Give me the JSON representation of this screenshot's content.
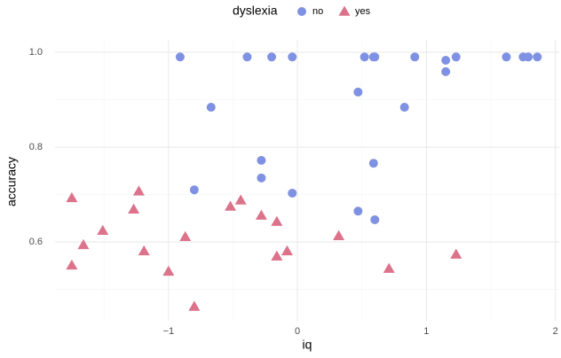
{
  "chart_data": {
    "type": "scatter",
    "legend_title": "dyslexia",
    "legend_position": "top",
    "x_label": "iq",
    "y_label": "accuracy",
    "xlim": [
      -1.88,
      2.03
    ],
    "ylim": [
      0.434,
      1.026
    ],
    "xticks": [
      {
        "value": -1,
        "label": "−1"
      },
      0,
      1,
      2
    ],
    "yticks": [
      0.6,
      0.8,
      {
        "value": 1,
        "label": "1.0"
      }
    ],
    "xminor": [
      -1.5,
      -0.5,
      0.5,
      1.5
    ],
    "yminor": [
      0.5,
      0.7,
      0.9
    ],
    "grid": true,
    "series": [
      {
        "name": "no",
        "color": "#7f91e2",
        "shape": "circle",
        "x": [
          -0.91,
          -0.39,
          -0.2,
          -0.04,
          0.52,
          0.59,
          0.6,
          0.91,
          1.15,
          1.23,
          1.62,
          1.75,
          1.79,
          1.86,
          -0.67,
          0.47,
          1.15,
          0.83,
          -0.28,
          0.59,
          -0.28,
          -0.8,
          -0.04,
          0.47,
          0.6
        ],
        "values": [
          0.99,
          0.99,
          0.99,
          0.99,
          0.99,
          0.99,
          0.99,
          0.99,
          0.983,
          0.99,
          0.99,
          0.99,
          0.99,
          0.99,
          0.884,
          0.916,
          0.959,
          0.884,
          0.772,
          0.766,
          0.735,
          0.71,
          0.703,
          0.665,
          0.647
        ]
      },
      {
        "name": "yes",
        "color": "#dc738b",
        "shape": "triangle",
        "x": [
          -1.75,
          -1.23,
          -1.27,
          -1.51,
          -1.66,
          -1.75,
          -1.19,
          -0.87,
          -1.0,
          -0.8,
          -0.52,
          -0.44,
          -0.28,
          -0.16,
          -0.16,
          -0.08,
          0.32,
          0.71,
          1.23
        ],
        "values": [
          0.693,
          0.707,
          0.669,
          0.624,
          0.594,
          0.551,
          0.581,
          0.611,
          0.538,
          0.464,
          0.675,
          0.688,
          0.656,
          0.643,
          0.57,
          0.581,
          0.613,
          0.544,
          0.574
        ]
      }
    ]
  }
}
